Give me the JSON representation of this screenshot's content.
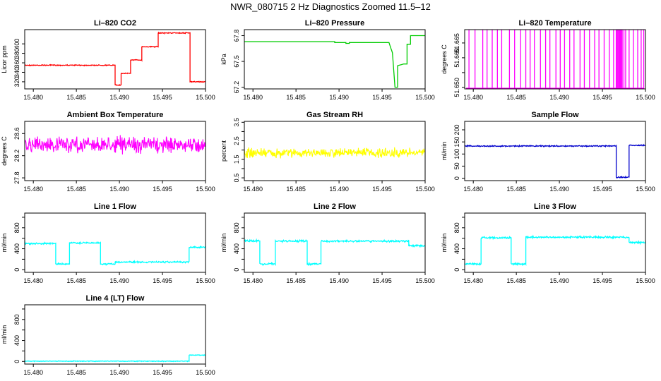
{
  "page": {
    "title": "NWR_080715  2 Hz Diagnostics Zoomed 11.5–12"
  },
  "chart_data": [
    {
      "type": "line",
      "title": "Li–820 CO2",
      "ylabel": "Licor ppm",
      "xlabel": "",
      "xlim": [
        15.479,
        15.5
      ],
      "ylim": [
        305,
        430
      ],
      "yticks": [
        320,
        340,
        360,
        380,
        400
      ],
      "xticks": [
        "15.480",
        "15.485",
        "15.490",
        "15.495",
        "15.500"
      ],
      "color": "#ff0000",
      "noise": 0.6,
      "x": [
        15.479,
        15.4895,
        15.4895,
        15.4902,
        15.4902,
        15.4913,
        15.4913,
        15.4926,
        15.4926,
        15.4945,
        15.4945,
        15.4952,
        15.4952,
        15.4982,
        15.4982,
        15.5
      ],
      "y": [
        355,
        355,
        313,
        313,
        338,
        338,
        366,
        366,
        394,
        394,
        423,
        423,
        423,
        423,
        320,
        320
      ]
    },
    {
      "type": "line",
      "title": "Li–820 Pressure",
      "ylabel": "kPa",
      "xlabel": "",
      "xlim": [
        15.479,
        15.5
      ],
      "ylim": [
        67.18,
        67.87
      ],
      "yticks": [
        67.2,
        67.5,
        67.8
      ],
      "xticks": [
        "15.480",
        "15.485",
        "15.490",
        "15.495",
        "15.500"
      ],
      "color": "#00cc00",
      "noise": 0.0,
      "x": [
        15.479,
        15.4895,
        15.4895,
        15.4908,
        15.4908,
        15.4912,
        15.4912,
        15.4958,
        15.4962,
        15.4965,
        15.4968,
        15.4968,
        15.4975,
        15.4979,
        15.4979,
        15.4983,
        15.4983,
        15.5
      ],
      "y": [
        67.73,
        67.73,
        67.72,
        67.72,
        67.71,
        67.71,
        67.72,
        67.72,
        67.6,
        67.2,
        67.2,
        67.45,
        67.47,
        67.47,
        67.7,
        67.7,
        67.8,
        67.8
      ]
    },
    {
      "type": "spikes",
      "title": "Li–820 Temperature",
      "ylabel": "degrees C",
      "xlabel": "",
      "xlim": [
        15.479,
        15.5
      ],
      "ylim": [
        51.6495,
        51.6695
      ],
      "yticks": [
        51.65,
        51.655,
        51.66,
        51.665
      ],
      "ytick_labels": [
        "51.650",
        "",
        "51.660",
        "51.665"
      ],
      "xticks": [
        "15.480",
        "15.485",
        "15.490",
        "15.495",
        "15.500"
      ],
      "color": "#ff00ff",
      "base": 51.6495,
      "top": 51.6695,
      "x": [
        15.4795,
        15.4802,
        15.4811,
        15.4816,
        15.4822,
        15.4828,
        15.4833,
        15.4842,
        15.4848,
        15.4855,
        15.4861,
        15.4866,
        15.4871,
        15.4878,
        15.4884,
        15.4889,
        15.4896,
        15.4901,
        15.4906,
        15.4912,
        15.4917,
        15.4924,
        15.4929,
        15.4935,
        15.4941,
        15.4946,
        15.4952,
        15.4958,
        15.4963,
        15.4966,
        15.4967,
        15.4968,
        15.4969,
        15.497,
        15.4971,
        15.4972,
        15.4973,
        15.4975,
        15.4977,
        15.4981,
        15.4986,
        15.4991,
        15.4995,
        15.4998
      ]
    },
    {
      "type": "line",
      "title": "Ambient Box Temperature",
      "ylabel": "degrees C",
      "xlabel": "",
      "xlim": [
        15.479,
        15.5
      ],
      "ylim": [
        27.75,
        28.82
      ],
      "yticks": [
        27.8,
        28.2,
        28.6
      ],
      "xticks": [
        "15.480",
        "15.485",
        "15.490",
        "15.495",
        "15.500"
      ],
      "color": "#ff00ff",
      "noise": 10.0,
      "x": [
        15.479,
        15.5
      ],
      "y": [
        28.4,
        28.4
      ]
    },
    {
      "type": "line",
      "title": "Gas Stream RH",
      "ylabel": "percent",
      "xlabel": "",
      "xlim": [
        15.479,
        15.5
      ],
      "ylim": [
        0.35,
        3.55
      ],
      "yticks": [
        0.5,
        1.0,
        1.5,
        2.0,
        2.5,
        3.0,
        3.5
      ],
      "ytick_labels": [
        "0.5",
        "",
        "1.5",
        "",
        "2.5",
        "",
        "3.5"
      ],
      "xticks": [
        "15.480",
        "15.485",
        "15.490",
        "15.495",
        "15.500"
      ],
      "color": "#ffff00",
      "noise": 6.0,
      "x": [
        15.479,
        15.5
      ],
      "y": [
        1.85,
        1.85
      ]
    },
    {
      "type": "line",
      "title": "Sample Flow",
      "ylabel": "ml/min",
      "xlabel": "",
      "xlim": [
        15.479,
        15.5
      ],
      "ylim": [
        -10,
        235
      ],
      "yticks": [
        0,
        50,
        100,
        150,
        200
      ],
      "xticks": [
        "15.480",
        "15.485",
        "15.490",
        "15.495",
        "15.500"
      ],
      "color": "#0000cc",
      "noise": 0.8,
      "x": [
        15.479,
        15.4966,
        15.4966,
        15.4981,
        15.4981,
        15.5
      ],
      "y": [
        133,
        133,
        4,
        4,
        136,
        136
      ]
    },
    {
      "type": "line",
      "title": "Line 1 Flow",
      "ylabel": "ml/min",
      "xlabel": "",
      "xlim": [
        15.479,
        15.5
      ],
      "ylim": [
        -50,
        1080
      ],
      "yticks": [
        0,
        200,
        400,
        600,
        800,
        1000
      ],
      "ytick_labels": [
        "0",
        "",
        "400",
        "",
        "800",
        ""
      ],
      "xticks": [
        "15.480",
        "15.485",
        "15.490",
        "15.495",
        "15.500"
      ],
      "color": "#00ffff",
      "noise": 1.0,
      "x": [
        15.479,
        15.4826,
        15.4826,
        15.4842,
        15.4842,
        15.4878,
        15.4878,
        15.4895,
        15.4895,
        15.4981,
        15.4981,
        15.5
      ],
      "y": [
        500,
        500,
        110,
        110,
        510,
        510,
        110,
        110,
        145,
        145,
        430,
        430
      ]
    },
    {
      "type": "line",
      "title": "Line 2 Flow",
      "ylabel": "ml/min",
      "xlabel": "",
      "xlim": [
        15.479,
        15.5
      ],
      "ylim": [
        -50,
        1080
      ],
      "yticks": [
        0,
        200,
        400,
        600,
        800,
        1000
      ],
      "ytick_labels": [
        "0",
        "",
        "400",
        "",
        "800",
        ""
      ],
      "xticks": [
        "15.480",
        "15.485",
        "15.490",
        "15.495",
        "15.500"
      ],
      "color": "#00ffff",
      "noise": 1.2,
      "x": [
        15.479,
        15.4808,
        15.4808,
        15.4826,
        15.4826,
        15.4863,
        15.4863,
        15.4879,
        15.4879,
        15.4981,
        15.4981,
        15.5
      ],
      "y": [
        550,
        550,
        110,
        110,
        545,
        545,
        110,
        110,
        545,
        545,
        460,
        460
      ]
    },
    {
      "type": "line",
      "title": "Line 3 Flow",
      "ylabel": "ml/min",
      "xlabel": "",
      "xlim": [
        15.479,
        15.5
      ],
      "ylim": [
        -50,
        1080
      ],
      "yticks": [
        0,
        200,
        400,
        600,
        800,
        1000
      ],
      "ytick_labels": [
        "0",
        "",
        "400",
        "",
        "800",
        ""
      ],
      "xticks": [
        "15.480",
        "15.485",
        "15.490",
        "15.495",
        "15.500"
      ],
      "color": "#00ffff",
      "noise": 1.2,
      "x": [
        15.479,
        15.4809,
        15.4809,
        15.4844,
        15.4844,
        15.4861,
        15.4861,
        15.4981,
        15.4981,
        15.5
      ],
      "y": [
        110,
        110,
        610,
        610,
        110,
        110,
        620,
        620,
        520,
        520
      ]
    },
    {
      "type": "line",
      "title": "Line 4 (LT) Flow",
      "ylabel": "ml/min",
      "xlabel": "",
      "xlim": [
        15.479,
        15.5
      ],
      "ylim": [
        -50,
        1080
      ],
      "yticks": [
        0,
        200,
        400,
        600,
        800,
        1000
      ],
      "ytick_labels": [
        "0",
        "",
        "400",
        "",
        "800",
        ""
      ],
      "xticks": [
        "15.480",
        "15.485",
        "15.490",
        "15.495",
        "15.500"
      ],
      "color": "#00ffff",
      "noise": 0.5,
      "x": [
        15.479,
        15.4981,
        15.4981,
        15.5
      ],
      "y": [
        5,
        5,
        120,
        120
      ]
    }
  ]
}
